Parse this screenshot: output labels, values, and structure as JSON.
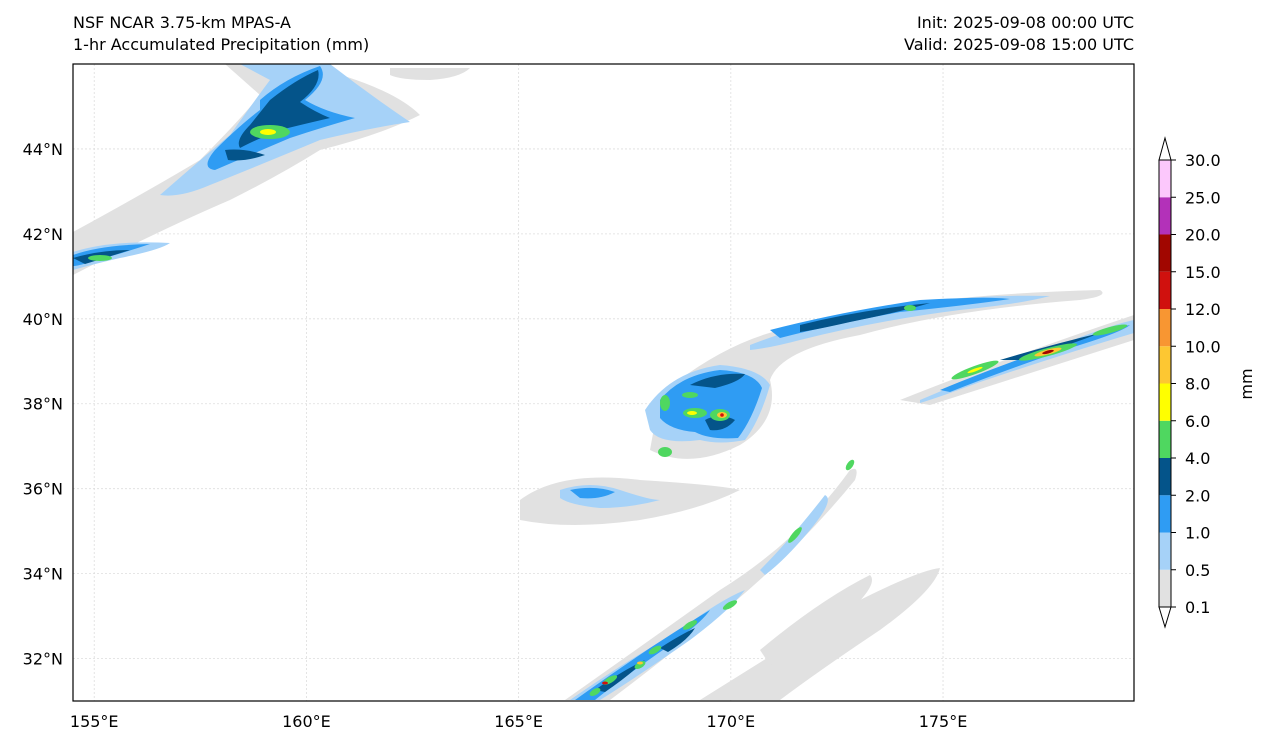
{
  "header": {
    "model": "NSF NCAR 3.75-km MPAS-A",
    "field": "1-hr Accumulated Precipitation (mm)",
    "init": "Init: 2025-09-08 00:00 UTC",
    "valid": "Valid: 2025-09-08 15:00 UTC"
  },
  "map": {
    "lon_ticks": [
      155,
      160,
      165,
      170,
      175
    ],
    "lon_labels": [
      "155°E",
      "160°E",
      "165°E",
      "170°E",
      "175°E"
    ],
    "lat_ticks": [
      32,
      34,
      36,
      38,
      40,
      42,
      44
    ],
    "lat_labels": [
      "32°N",
      "34°N",
      "36°N",
      "38°N",
      "40°N",
      "42°N",
      "44°N"
    ],
    "lon_range": [
      154.5,
      179.5
    ],
    "lat_range": [
      31.0,
      46.0
    ],
    "grid": true
  },
  "colorbar": {
    "unit": "mm",
    "levels": [
      "0.1",
      "0.5",
      "1.0",
      "2.0",
      "4.0",
      "6.0",
      "8.0",
      "10.0",
      "12.0",
      "15.0",
      "20.0",
      "25.0",
      "30.0"
    ],
    "colors": [
      "#e1e1e1",
      "#a6d2f8",
      "#2f9cf3",
      "#04548a",
      "#4fd760",
      "#ffff00",
      "#fdc732",
      "#f89632",
      "#d0110e",
      "#a10600",
      "#b331b9",
      "#fcc8fc"
    ],
    "extend": "both"
  }
}
